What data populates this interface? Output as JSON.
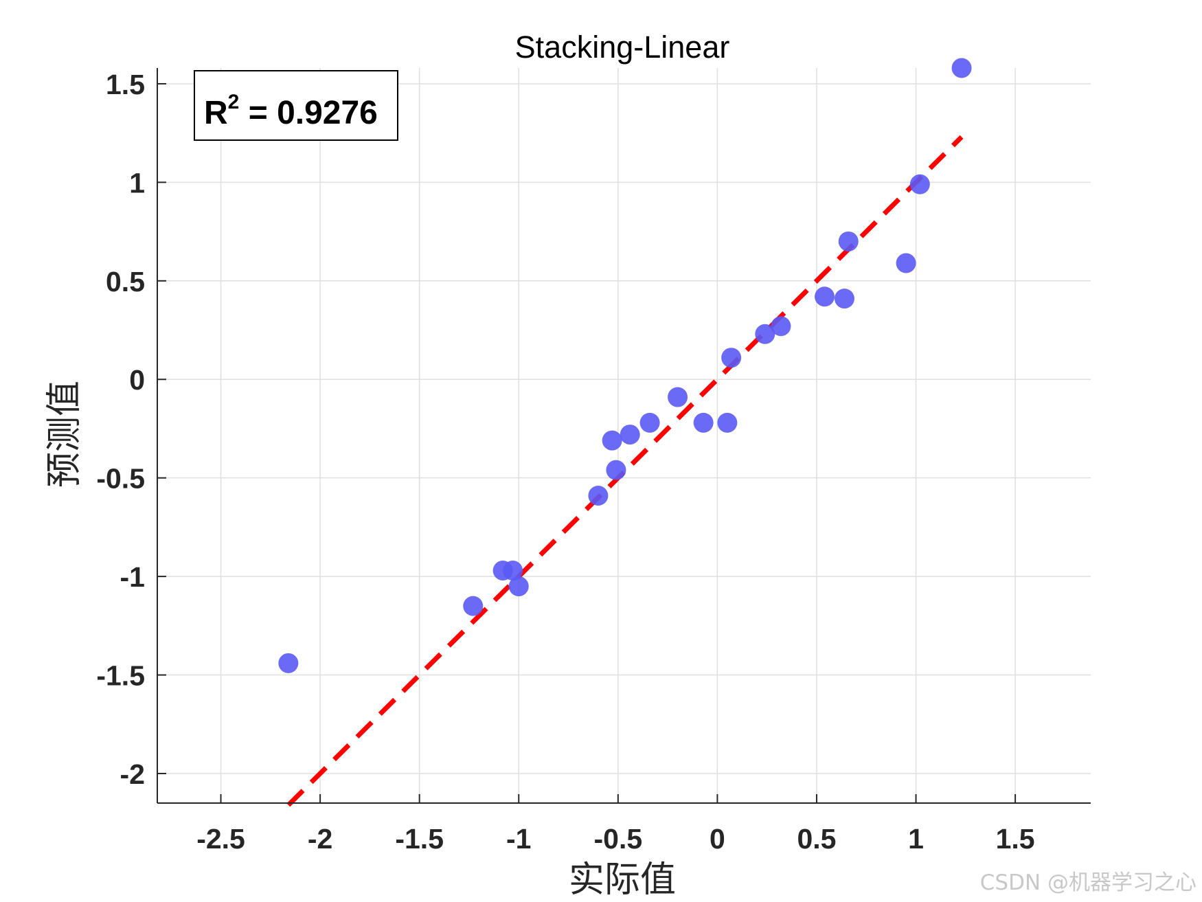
{
  "chart_data": {
    "type": "scatter",
    "title": "Stacking-Linear",
    "xlabel": "实际值",
    "ylabel": "预测值",
    "xlim": [
      -2.82,
      1.88
    ],
    "ylim": [
      -2.15,
      1.58
    ],
    "xticks": [
      -2.5,
      -2,
      -1.5,
      -1,
      -0.5,
      0,
      0.5,
      1,
      1.5
    ],
    "xtick_labels": [
      "-2.5",
      "-2",
      "-1.5",
      "-1",
      "-0.5",
      "0",
      "0.5",
      "1",
      "1.5"
    ],
    "yticks": [
      -2,
      -1.5,
      -1,
      -0.5,
      0,
      0.5,
      1,
      1.5
    ],
    "ytick_labels": [
      "-2",
      "-1.5",
      "-1",
      "-0.5",
      "0",
      "0.5",
      "1",
      "1.5"
    ],
    "grid": true,
    "annotation": {
      "prefix": "R",
      "superscript": "2",
      "text": " = 0.9276",
      "placement": "top-left"
    },
    "points": {
      "color": "#5a5af5",
      "x": [
        -2.16,
        -1.23,
        -1.08,
        -1.03,
        -1.0,
        -0.6,
        -0.51,
        -0.53,
        -0.44,
        -0.34,
        -0.2,
        -0.07,
        0.05,
        0.07,
        0.24,
        0.32,
        0.54,
        0.64,
        0.66,
        0.95,
        1.02,
        1.23
      ],
      "y": [
        -1.44,
        -1.15,
        -0.97,
        -0.97,
        -1.05,
        -0.59,
        -0.46,
        -0.31,
        -0.28,
        -0.22,
        -0.09,
        -0.22,
        -0.22,
        0.11,
        0.23,
        0.27,
        0.42,
        0.41,
        0.7,
        0.59,
        0.99,
        1.58
      ]
    },
    "fit_line": {
      "color": "#ff0000",
      "style": "dashed",
      "x": [
        -2.16,
        1.23
      ],
      "y": [
        -2.16,
        1.23
      ]
    }
  },
  "watermark": "CSDN @机器学习之心"
}
